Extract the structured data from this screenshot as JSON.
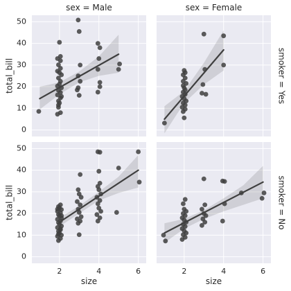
{
  "chart_data": {
    "type": "scatter",
    "figure": {
      "row_facet_var": "smoker",
      "col_facet_var": "sex",
      "xlabel": "size",
      "ylabel": "total_bill",
      "xlim": [
        0.6,
        6.4
      ],
      "ylim": [
        -3,
        53
      ],
      "xticks": [
        2,
        4,
        6
      ],
      "yticks": [
        0,
        10,
        20,
        30,
        40,
        50
      ],
      "grid": true,
      "point_color": "#3f3f3f",
      "line_color": "#3f3f3f",
      "ci_color": "#444444",
      "panel_background": "#eaeaf2"
    },
    "col_titles": [
      "sex = Male",
      "sex = Female"
    ],
    "row_titles": [
      "smoker = Yes",
      "smoker = No"
    ],
    "panels": [
      {
        "row": 0,
        "col": 0,
        "regression": {
          "x": [
            1,
            5
          ],
          "y": [
            14.5,
            35
          ]
        },
        "ci": {
          "x": [
            1,
            2,
            3,
            4,
            5
          ],
          "lower": [
            9.5,
            16.5,
            22,
            25,
            26.5
          ],
          "upper": [
            20,
            22,
            27,
            34,
            44
          ]
        },
        "points": [
          [
            0.95,
            8.6
          ],
          [
            1.9,
            7.3
          ],
          [
            1.95,
            11.5
          ],
          [
            2.0,
            12.5
          ],
          [
            1.95,
            13.4
          ],
          [
            2.05,
            14.8
          ],
          [
            1.9,
            16.2
          ],
          [
            2.05,
            17.3
          ],
          [
            1.95,
            18.3
          ],
          [
            2.1,
            19.5
          ],
          [
            1.9,
            20.3
          ],
          [
            2.0,
            21.2
          ],
          [
            2.05,
            22.5
          ],
          [
            1.95,
            24.0
          ],
          [
            2.1,
            25.5
          ],
          [
            1.9,
            27.2
          ],
          [
            2.05,
            28.5
          ],
          [
            1.95,
            30.1
          ],
          [
            2.05,
            32.0
          ],
          [
            1.9,
            33.0
          ],
          [
            2.05,
            34.0
          ],
          [
            2.0,
            40.5
          ],
          [
            2.05,
            8.0
          ],
          [
            1.95,
            10.5
          ],
          [
            2.1,
            15.5
          ],
          [
            2.0,
            26.5
          ],
          [
            2.95,
            50.8
          ],
          [
            3.0,
            45.5
          ],
          [
            3.05,
            30.0
          ],
          [
            2.95,
            25.0
          ],
          [
            3.05,
            22.5
          ],
          [
            2.95,
            19.5
          ],
          [
            3.0,
            16.0
          ],
          [
            3.95,
            40.0
          ],
          [
            4.05,
            38.0
          ],
          [
            3.95,
            28.0
          ],
          [
            4.05,
            22.0
          ],
          [
            3.95,
            17.5
          ],
          [
            4.05,
            20.0
          ],
          [
            5.0,
            28.0
          ],
          [
            5.05,
            30.5
          ],
          [
            4.0,
            33.0
          ],
          [
            2.9,
            18.5
          ]
        ]
      },
      {
        "row": 0,
        "col": 1,
        "regression": {
          "x": [
            1,
            4
          ],
          "y": [
            5,
            37
          ]
        },
        "ci": {
          "x": [
            1,
            2,
            3,
            4
          ],
          "lower": [
            -1.5,
            12.5,
            21,
            27.5
          ],
          "upper": [
            11,
            18,
            31,
            46
          ]
        },
        "points": [
          [
            1.0,
            3.2
          ],
          [
            2.0,
            5.6
          ],
          [
            1.95,
            8.5
          ],
          [
            2.05,
            9.6
          ],
          [
            1.9,
            10.5
          ],
          [
            2.05,
            11.5
          ],
          [
            1.95,
            12.5
          ],
          [
            2.1,
            13.4
          ],
          [
            2.0,
            14.5
          ],
          [
            1.9,
            15.5
          ],
          [
            2.05,
            16.5
          ],
          [
            1.95,
            17.5
          ],
          [
            2.05,
            18.5
          ],
          [
            2.0,
            19.5
          ],
          [
            1.95,
            20.5
          ],
          [
            2.1,
            21.5
          ],
          [
            1.95,
            22.5
          ],
          [
            2.05,
            24.0
          ],
          [
            1.95,
            25.5
          ],
          [
            2.05,
            26.5
          ],
          [
            2.0,
            27.5
          ],
          [
            3.0,
            44.3
          ],
          [
            3.05,
            28.0
          ],
          [
            2.95,
            21.0
          ],
          [
            3.1,
            16.5
          ],
          [
            2.9,
            17.0
          ],
          [
            4.0,
            43.5
          ],
          [
            4.0,
            30.0
          ]
        ]
      },
      {
        "row": 1,
        "col": 0,
        "regression": {
          "x": [
            2,
            6
          ],
          "y": [
            16,
            40
          ]
        },
        "ci": {
          "x": [
            2,
            3,
            4,
            5,
            6
          ],
          "lower": [
            14,
            20,
            26,
            29.5,
            32
          ],
          "upper": [
            18,
            23.5,
            30,
            37,
            47
          ]
        },
        "points": [
          [
            1.95,
            7.5
          ],
          [
            2.05,
            8.5
          ],
          [
            1.9,
            9.5
          ],
          [
            2.1,
            10.0
          ],
          [
            2.0,
            11.0
          ],
          [
            1.95,
            11.8
          ],
          [
            2.05,
            12.5
          ],
          [
            1.9,
            13.5
          ],
          [
            2.1,
            14.2
          ],
          [
            2.0,
            15.0
          ],
          [
            1.95,
            15.8
          ],
          [
            2.05,
            16.5
          ],
          [
            1.9,
            17.3
          ],
          [
            2.1,
            18.0
          ],
          [
            2.0,
            18.8
          ],
          [
            1.95,
            19.5
          ],
          [
            2.05,
            20.3
          ],
          [
            1.9,
            21.0
          ],
          [
            2.1,
            21.8
          ],
          [
            2.0,
            22.5
          ],
          [
            1.95,
            23.2
          ],
          [
            2.05,
            24.0
          ],
          [
            1.9,
            22.0
          ],
          [
            2.1,
            19.0
          ],
          [
            2.05,
            13.0
          ],
          [
            1.95,
            10.5
          ],
          [
            3.0,
            10.2
          ],
          [
            2.95,
            15.5
          ],
          [
            3.05,
            16.5
          ],
          [
            2.9,
            17.5
          ],
          [
            3.1,
            18.5
          ],
          [
            3.0,
            20.5
          ],
          [
            2.95,
            22.0
          ],
          [
            3.05,
            24.0
          ],
          [
            2.9,
            25.5
          ],
          [
            3.1,
            27.5
          ],
          [
            3.0,
            29.0
          ],
          [
            2.95,
            31.0
          ],
          [
            3.05,
            38.0
          ],
          [
            3.95,
            16.5
          ],
          [
            4.05,
            18.0
          ],
          [
            3.9,
            19.5
          ],
          [
            4.1,
            21.0
          ],
          [
            4.0,
            22.5
          ],
          [
            3.95,
            24.5
          ],
          [
            4.05,
            26.0
          ],
          [
            3.9,
            27.5
          ],
          [
            4.1,
            29.0
          ],
          [
            4.0,
            31.0
          ],
          [
            3.95,
            32.5
          ],
          [
            4.05,
            34.0
          ],
          [
            4.0,
            39.5
          ],
          [
            3.95,
            48.5
          ],
          [
            4.05,
            48.3
          ],
          [
            4.9,
            20.5
          ],
          [
            5.0,
            41.0
          ],
          [
            6.0,
            48.5
          ],
          [
            6.05,
            34.5
          ]
        ]
      },
      {
        "row": 1,
        "col": 1,
        "regression": {
          "x": [
            1,
            6
          ],
          "y": [
            11,
            34.5
          ]
        },
        "ci": {
          "x": [
            1,
            2,
            3,
            4,
            5,
            6
          ],
          "lower": [
            6.5,
            13,
            17.5,
            21,
            24,
            27
          ],
          "upper": [
            15.5,
            17.5,
            21.5,
            27,
            33,
            42
          ]
        },
        "points": [
          [
            0.95,
            10.0
          ],
          [
            1.05,
            7.3
          ],
          [
            1.9,
            8.0
          ],
          [
            2.05,
            9.0
          ],
          [
            1.95,
            10.2
          ],
          [
            2.1,
            11.0
          ],
          [
            2.0,
            12.0
          ],
          [
            1.9,
            13.0
          ],
          [
            2.05,
            14.0
          ],
          [
            1.95,
            15.0
          ],
          [
            2.1,
            16.0
          ],
          [
            2.0,
            17.0
          ],
          [
            1.9,
            18.0
          ],
          [
            2.05,
            19.0
          ],
          [
            1.95,
            20.0
          ],
          [
            2.1,
            21.0
          ],
          [
            2.0,
            22.0
          ],
          [
            1.95,
            24.5
          ],
          [
            2.05,
            26.5
          ],
          [
            2.9,
            14.5
          ],
          [
            3.05,
            16.0
          ],
          [
            2.95,
            17.5
          ],
          [
            3.1,
            19.0
          ],
          [
            3.0,
            20.0
          ],
          [
            2.9,
            22.0
          ],
          [
            3.05,
            24.0
          ],
          [
            3.0,
            36.0
          ],
          [
            3.95,
            16.5
          ],
          [
            4.05,
            24.5
          ],
          [
            3.95,
            35.0
          ],
          [
            4.05,
            34.8
          ],
          [
            4.9,
            29.5
          ],
          [
            6.05,
            29.5
          ],
          [
            5.95,
            27.0
          ]
        ]
      }
    ]
  }
}
